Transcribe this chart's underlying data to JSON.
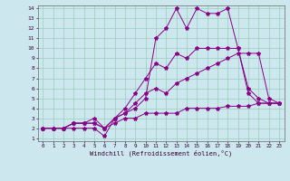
{
  "xlabel": "Windchill (Refroidissement éolien,°C)",
  "bg_color": "#cce8ee",
  "grid_color": "#99ccbb",
  "line_color": "#880088",
  "xlim": [
    -0.5,
    23.5
  ],
  "ylim": [
    0.7,
    14.3
  ],
  "line1_x": [
    0,
    1,
    2,
    3,
    4,
    5,
    6,
    7,
    8,
    9,
    10,
    11,
    12,
    13,
    14,
    15,
    16,
    17,
    18,
    19,
    20,
    21,
    22,
    23
  ],
  "line1_y": [
    2,
    2,
    2,
    2,
    2,
    2,
    1.2,
    3,
    3.5,
    4,
    5,
    11,
    12,
    14,
    12,
    14,
    13.5,
    13.5,
    14,
    10,
    6,
    5,
    4.5,
    4.5
  ],
  "line2_x": [
    0,
    1,
    2,
    3,
    4,
    5,
    6,
    7,
    8,
    9,
    10,
    11,
    12,
    13,
    14,
    15,
    16,
    17,
    18,
    19,
    20,
    21,
    22,
    23
  ],
  "line2_y": [
    2,
    2,
    2,
    2.5,
    2.5,
    2.5,
    2,
    3,
    4,
    5.5,
    7,
    8.5,
    8,
    9.5,
    9,
    10,
    10,
    10,
    10,
    10,
    5.5,
    4.5,
    4.5,
    4.5
  ],
  "line3_x": [
    0,
    1,
    2,
    3,
    4,
    5,
    6,
    7,
    8,
    9,
    10,
    11,
    12,
    13,
    14,
    15,
    16,
    17,
    18,
    19,
    20,
    21,
    22,
    23
  ],
  "line3_y": [
    2,
    2,
    2,
    2.5,
    2.5,
    2.5,
    2,
    3,
    3.5,
    4.5,
    5.5,
    6,
    5.5,
    6.5,
    7,
    7.5,
    8,
    8.5,
    9,
    9.5,
    9.5,
    9.5,
    5,
    4.5
  ],
  "line4_x": [
    0,
    1,
    2,
    3,
    4,
    5,
    6,
    7,
    8,
    9,
    10,
    11,
    12,
    13,
    14,
    15,
    16,
    17,
    18,
    19,
    20,
    21,
    22,
    23
  ],
  "line4_y": [
    2,
    2,
    2,
    2.5,
    2.5,
    3,
    2,
    2.5,
    3,
    3,
    3.5,
    3.5,
    3.5,
    3.5,
    4,
    4,
    4,
    4,
    4.2,
    4.2,
    4.2,
    4.5,
    4.5,
    4.5
  ]
}
